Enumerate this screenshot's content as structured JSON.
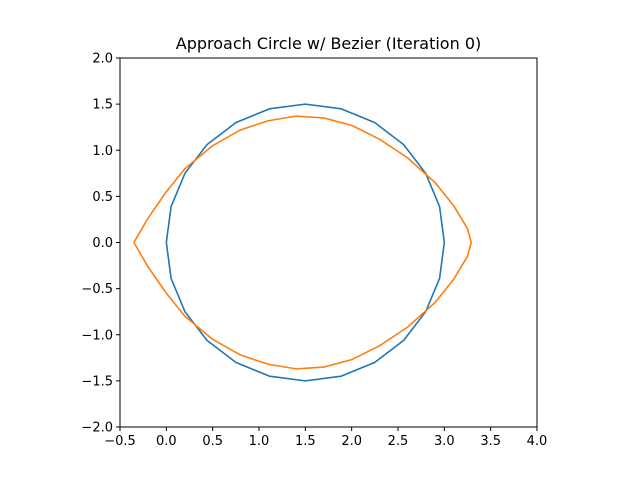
{
  "chart_data": {
    "type": "line",
    "title": "Approach Circle w/ Bezier (Iteration 0)",
    "xlabel": "",
    "ylabel": "",
    "xlim": [
      -0.5,
      4.0
    ],
    "ylim": [
      -2.0,
      2.0
    ],
    "xticks": [
      -0.5,
      0.0,
      0.5,
      1.0,
      1.5,
      2.0,
      2.5,
      3.0,
      3.5,
      4.0
    ],
    "yticks": [
      -2.0,
      -1.5,
      -1.0,
      -0.5,
      0.0,
      0.5,
      1.0,
      1.5,
      2.0
    ],
    "xtick_labels": [
      "−0.5",
      "0.0",
      "0.5",
      "1.0",
      "1.5",
      "2.0",
      "2.5",
      "3.0",
      "3.5",
      "4.0"
    ],
    "ytick_labels": [
      "−2.0",
      "−1.5",
      "−1.0",
      "−0.5",
      "0.0",
      "0.5",
      "1.0",
      "1.5",
      "2.0"
    ],
    "grid": false,
    "legend": "none",
    "series": [
      {
        "color": "#1f77b4",
        "x": [
          0.0,
          0.051,
          0.201,
          0.439,
          0.75,
          1.112,
          1.5,
          1.888,
          2.25,
          2.561,
          2.799,
          2.949,
          3.0,
          2.949,
          2.799,
          2.561,
          2.25,
          1.888,
          1.5,
          1.112,
          0.75,
          0.439,
          0.201,
          0.051,
          0.0
        ],
        "y": [
          0.0,
          0.388,
          0.75,
          1.061,
          1.299,
          1.449,
          1.5,
          1.449,
          1.299,
          1.061,
          0.75,
          0.388,
          0.0,
          -0.388,
          -0.75,
          -1.061,
          -1.299,
          -1.449,
          -1.5,
          -1.449,
          -1.299,
          -1.061,
          -0.75,
          -0.388,
          0.0
        ]
      },
      {
        "color": "#ff7f0e",
        "x": [
          -0.35,
          -0.2,
          0.0,
          0.2,
          0.5,
          0.8,
          1.1,
          1.4,
          1.7,
          2.0,
          2.3,
          2.6,
          2.9,
          3.1,
          3.25,
          3.29,
          3.25,
          3.1,
          2.9,
          2.6,
          2.3,
          2.0,
          1.7,
          1.4,
          1.1,
          0.8,
          0.5,
          0.2,
          0.0,
          -0.2,
          -0.35
        ],
        "y": [
          0.0,
          0.26,
          0.55,
          0.8,
          1.05,
          1.22,
          1.32,
          1.37,
          1.35,
          1.27,
          1.12,
          0.92,
          0.65,
          0.4,
          0.15,
          0.0,
          -0.15,
          -0.4,
          -0.65,
          -0.92,
          -1.12,
          -1.27,
          -1.35,
          -1.37,
          -1.32,
          -1.22,
          -1.05,
          -0.8,
          -0.55,
          -0.26,
          0.0
        ]
      }
    ]
  }
}
